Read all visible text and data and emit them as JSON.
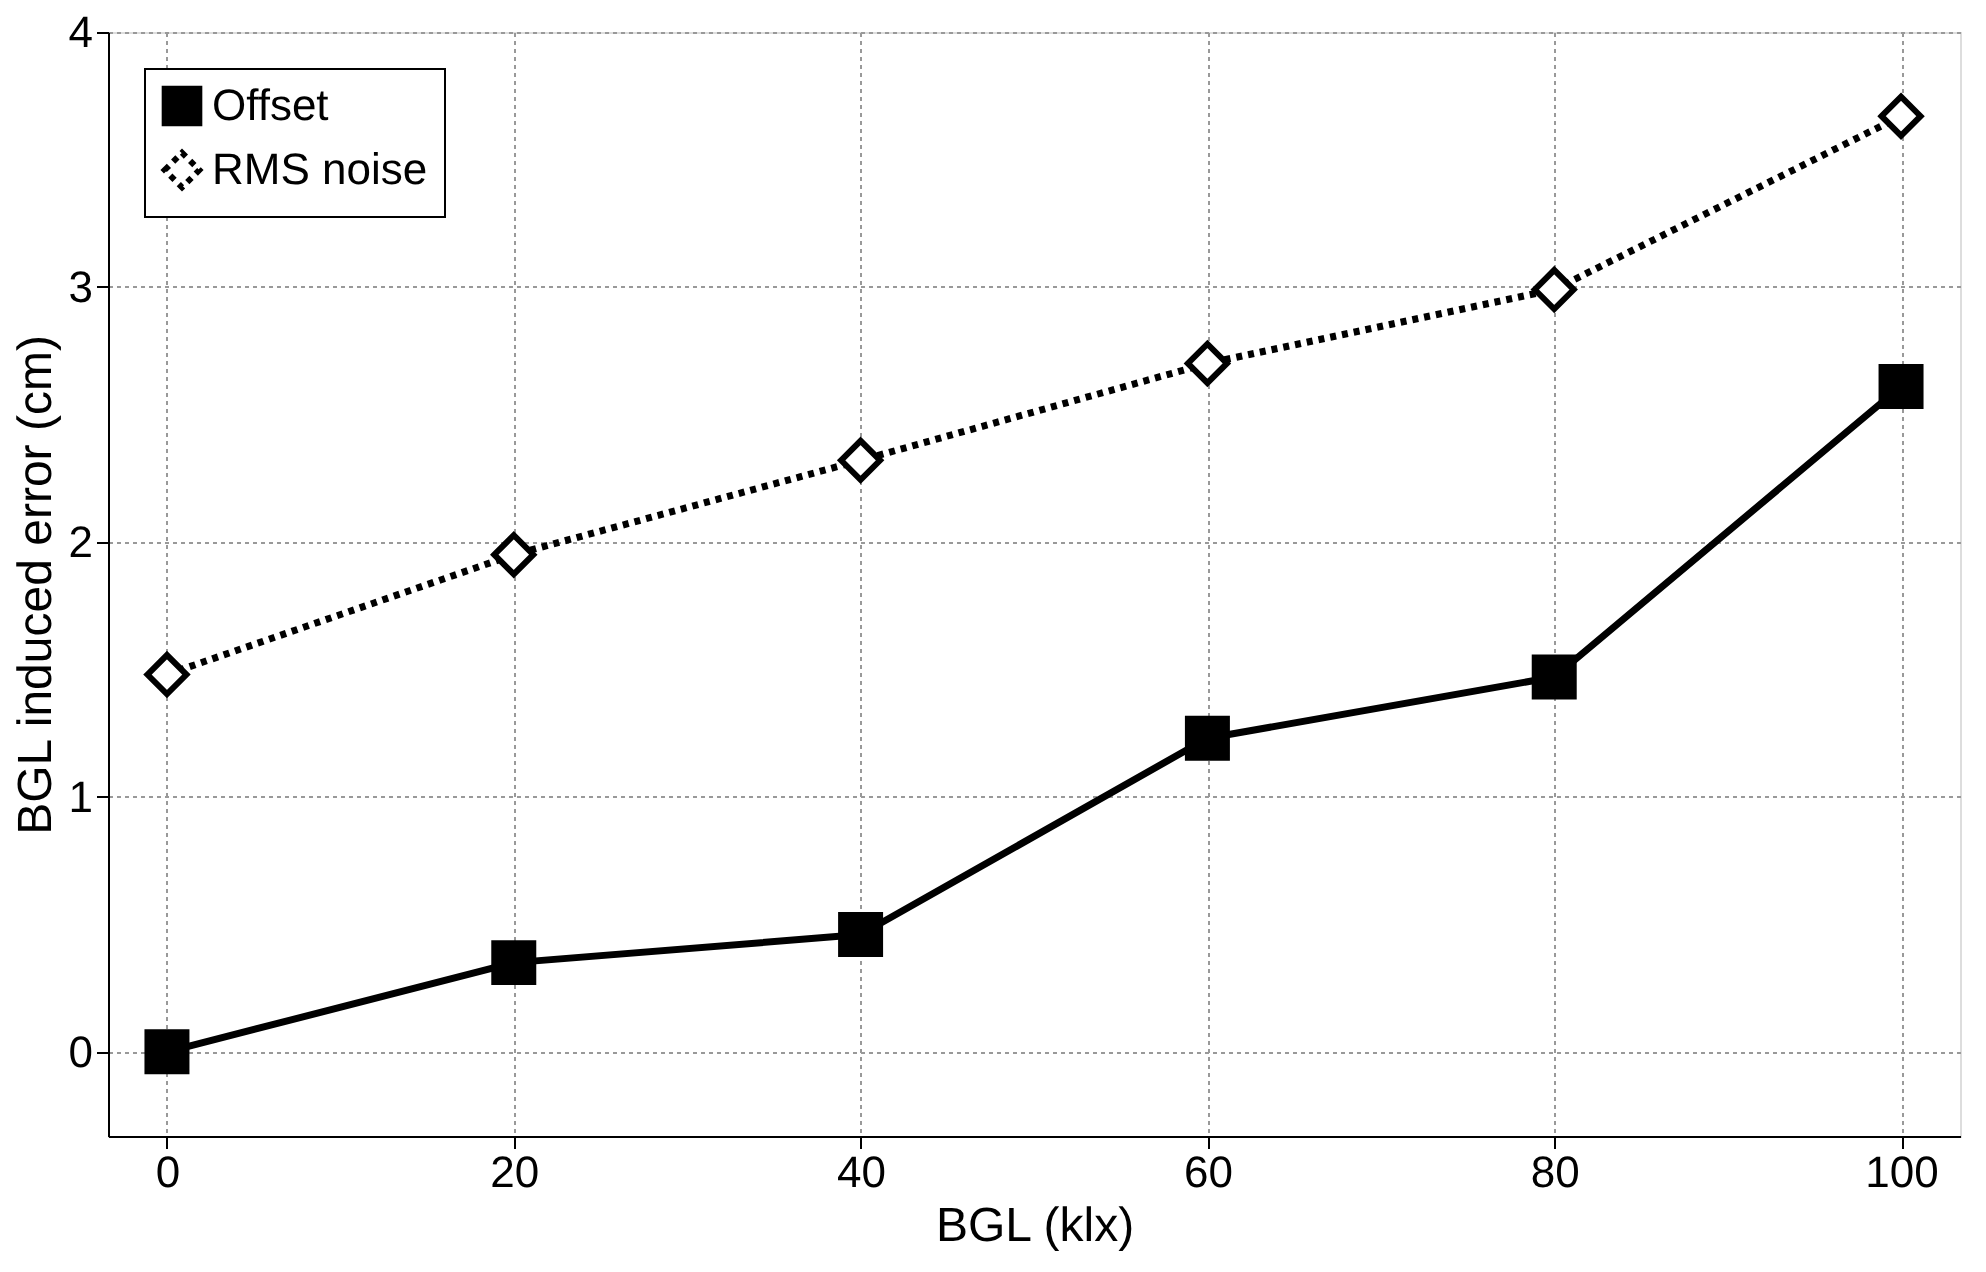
{
  "chart_data": {
    "type": "line",
    "xlabel": "BGL (klx)",
    "ylabel": "BGL induced error (cm)",
    "x": [
      0,
      20,
      40,
      60,
      80,
      100
    ],
    "series": [
      {
        "name": "Offset",
        "color": "#000000",
        "values": [
          0,
          0.35,
          0.46,
          1.23,
          1.47,
          2.61
        ],
        "marker": "square",
        "line_style": "solid"
      },
      {
        "name": "RMS noise",
        "color": "#000000",
        "values": [
          1.48,
          1.95,
          2.32,
          2.7,
          2.99,
          3.67
        ],
        "marker": "diamond",
        "line_style": "dotted"
      }
    ],
    "xlim": [
      -3.4,
      103.4
    ],
    "ylim": [
      -0.33,
      4
    ],
    "xticks": [
      0,
      20,
      40,
      60,
      80,
      100
    ],
    "yticks": [
      0,
      1,
      2,
      3,
      4
    ],
    "grid": true,
    "legend": "top left"
  }
}
